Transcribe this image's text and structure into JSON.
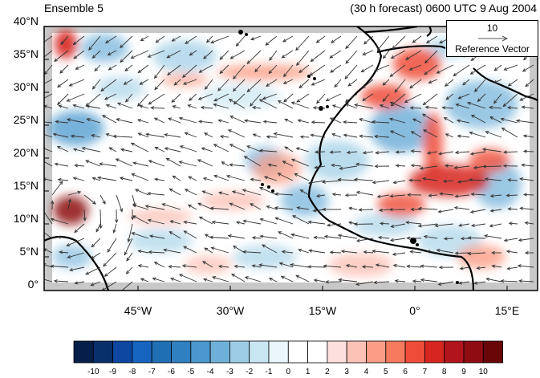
{
  "title_left": "Ensemble 5",
  "title_right": "(30 h forecast) 0600 UTC 9 Aug 2004",
  "reference_vector": {
    "magnitude": "10",
    "label": "Reference Vector"
  },
  "lat_labels": [
    "40°N",
    "35°N",
    "30°N",
    "25°N",
    "20°N",
    "15°N",
    "10°N",
    "5°N",
    "0°"
  ],
  "lon_labels": [
    "45°W",
    "30°W",
    "15°W",
    "0°",
    "15°E"
  ],
  "colorbar": {
    "labels": [
      "-10",
      "-9",
      "-8",
      "-7",
      "-6",
      "-5",
      "-4",
      "-3",
      "-2",
      "-1",
      "0",
      "1",
      "2",
      "3",
      "4",
      "5",
      "6",
      "7",
      "8",
      "9",
      "10"
    ],
    "colors": [
      "#061f4a",
      "#08306b",
      "#0d47a1",
      "#1565c0",
      "#1f6fb4",
      "#2f80c0",
      "#4a98cd",
      "#6fb0d8",
      "#9dcde6",
      "#c8e6f2",
      "#eaf6fb",
      "#ffffff",
      "#ffffff",
      "#fde0dd",
      "#fcc2b6",
      "#fb9d86",
      "#f77a5f",
      "#ef4d3a",
      "#d7261f",
      "#b2141b",
      "#8e0c12",
      "#680608"
    ]
  },
  "map_colors": {
    "ocean_bg": "#ffffff",
    "missing_data": "#c8c8c8",
    "coast": "#000000",
    "arrow": "#333333"
  }
}
